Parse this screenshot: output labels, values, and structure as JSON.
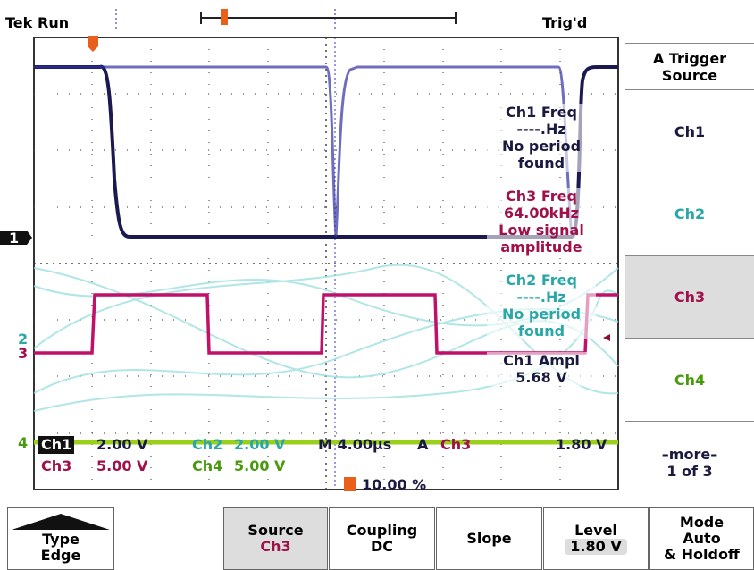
{
  "header": {
    "brand": "Tek",
    "state": "Run",
    "trigger_state": "Trig'd"
  },
  "side_menu": {
    "title": [
      "A Trigger",
      "Source"
    ],
    "items": [
      [
        "Ch1"
      ],
      [
        "Ch2"
      ],
      [
        "Ch3"
      ],
      [
        "Ch4"
      ],
      [
        "–more–",
        "1 of 3"
      ]
    ]
  },
  "measurements": [
    {
      "lines": [
        "Ch1 Freq",
        "----.Hz",
        "No period",
        "found"
      ]
    },
    {
      "lines": [
        "Ch3 Freq",
        "64.00kHz",
        "Low signal",
        "amplitude"
      ]
    },
    {
      "lines": [
        "Ch2 Freq",
        "----.Hz",
        "No period",
        "found"
      ]
    },
    {
      "lines": [
        "Ch1 Ampl",
        "5.68 V"
      ]
    }
  ],
  "channel_markers": [
    "1",
    "2",
    "3",
    "4"
  ],
  "status": {
    "ch1": "Ch1",
    "ch1_scale": "2.00 V",
    "ch2": "Ch2",
    "ch2_scale": "2.00 V",
    "ch3": "Ch3",
    "ch3_scale": "5.00 V",
    "ch4": "Ch4",
    "ch4_scale": "5.00 V",
    "timebase": "M 4.00µs",
    "trigger_label": "A",
    "trigger_source": "Ch3",
    "trigger_level": "1.80 V",
    "trigger_position": "10.00 %"
  },
  "bottom_menu": [
    {
      "lines": [
        "Type",
        "Edge"
      ]
    },
    {
      "lines": [
        "Source",
        "Ch3"
      ]
    },
    {
      "lines": [
        "Coupling",
        "DC"
      ]
    },
    {
      "lines": [
        "Slope"
      ]
    },
    {
      "lines": [
        "Level",
        "1.80 V"
      ]
    },
    {
      "lines": [
        "Mode",
        "Auto",
        "& Holdoff"
      ]
    }
  ]
}
